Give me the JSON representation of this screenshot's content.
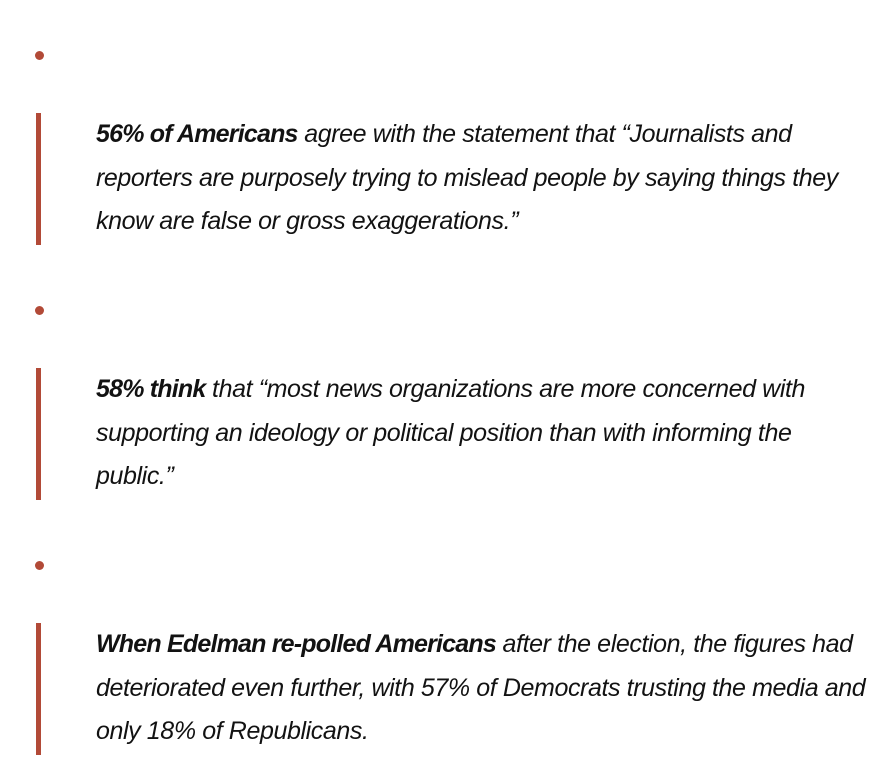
{
  "items": [
    {
      "lead": "56% of Americans",
      "text": " agree with the statement that “Journalists and reporters are purposely trying to mislead people by saying things they know are false or gross exaggerations.”"
    },
    {
      "lead": "58% think",
      "text": " that “most news organizations are more concerned with supporting an ideology or political position than with informing the public.”"
    },
    {
      "lead": "When Edelman re-polled Americans",
      "text": " after the election, the figures had deteriorated even further, with 57% of Democrats trusting the media and only 18% of Republicans."
    }
  ],
  "colors": {
    "accent": "#b24a37",
    "text": "#121212"
  }
}
